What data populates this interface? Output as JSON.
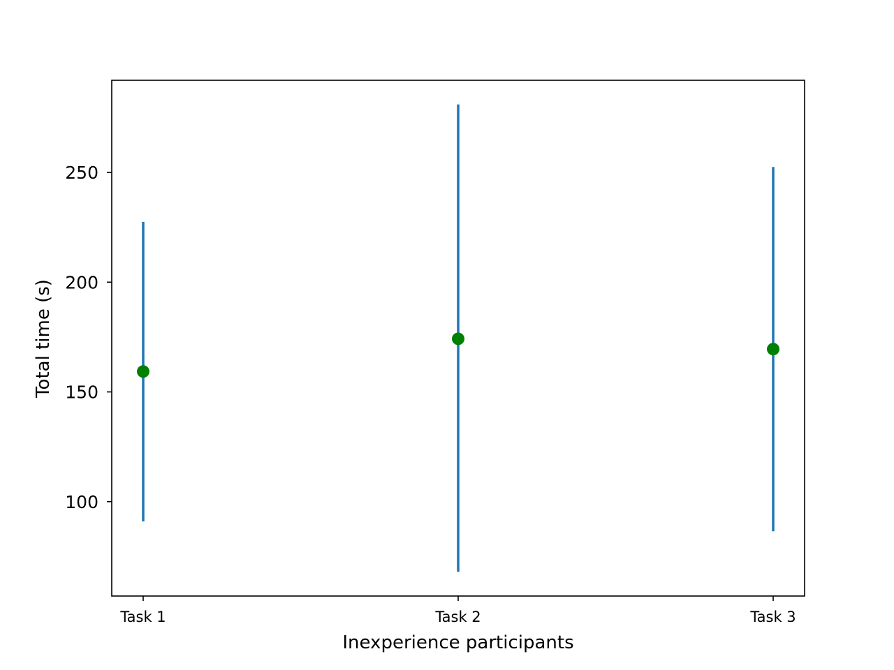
{
  "chart_data": {
    "type": "scatter",
    "title": "",
    "xlabel": "Inexperience participants",
    "ylabel": "Total time (s)",
    "categories": [
      "Task 1",
      "Task 2",
      "Task 3"
    ],
    "series": [
      {
        "values": [
          159.3,
          174.2,
          169.5
        ],
        "error_low": [
          91.0,
          68.0,
          86.5
        ],
        "error_high": [
          227.5,
          281.0,
          252.5
        ],
        "marker_color": "#008000",
        "errorbar_color": "#1f77b4"
      }
    ],
    "ylim": [
      57,
      292
    ],
    "yticks": [
      100,
      150,
      200,
      250
    ],
    "ytick_labels": [
      "100",
      "150",
      "200",
      "250"
    ],
    "grid": false,
    "legend": "none"
  }
}
